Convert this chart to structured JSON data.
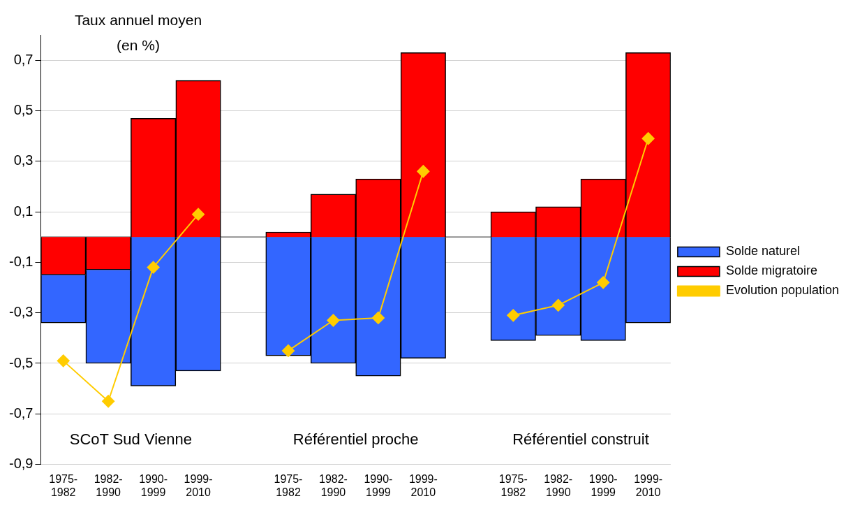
{
  "chart_data": {
    "type": "bar",
    "stacked": true,
    "ylabel": "Taux annuel moyen (en %)",
    "categories": [
      "1975-1982",
      "1982-1990",
      "1990-1999",
      "1999-2010",
      null,
      "1975-1982",
      "1982-1990",
      "1990-1999",
      "1999-2010",
      null,
      "1975-1982",
      "1982-1990",
      "1990-1999",
      "1999-2010"
    ],
    "series": [
      {
        "name": "Solde migratoire",
        "color": "#ff0000",
        "values": [
          -0.15,
          -0.13,
          0.47,
          0.62,
          null,
          0.02,
          0.17,
          0.23,
          0.73,
          null,
          0.1,
          0.12,
          0.23,
          0.73
        ]
      },
      {
        "name": "Solde naturel",
        "color": "#3366ff",
        "values": [
          -0.19,
          -0.37,
          -0.59,
          -0.53,
          null,
          -0.47,
          -0.5,
          -0.55,
          -0.48,
          null,
          -0.41,
          -0.39,
          -0.41,
          -0.34
        ]
      },
      {
        "name": "Evolution population",
        "type": "line",
        "color": "#ffcc00",
        "marker": "diamond",
        "values": [
          -0.49,
          -0.65,
          -0.12,
          0.09,
          null,
          -0.45,
          -0.33,
          -0.32,
          0.26,
          null,
          -0.31,
          -0.27,
          -0.18,
          0.39
        ]
      }
    ],
    "ylim": [
      -0.9,
      0.8
    ],
    "yticks": [
      {
        "value": -0.9,
        "label": "-0,9"
      },
      {
        "value": -0.7,
        "label": "-0,7"
      },
      {
        "value": -0.5,
        "label": "-0,5"
      },
      {
        "value": -0.3,
        "label": "-0,3"
      },
      {
        "value": -0.1,
        "label": "-0,1"
      },
      {
        "value": 0.1,
        "label": "0,1"
      },
      {
        "value": 0.3,
        "label": "0,3"
      },
      {
        "value": 0.5,
        "label": "0,5"
      },
      {
        "value": 0.7,
        "label": "0,7"
      }
    ],
    "grid": "y",
    "legend": "right",
    "ref_lines": [
      {
        "axis": "y",
        "value": 0,
        "color": "#555555"
      }
    ],
    "annotations": [
      "SCoT Sud Vienne",
      "Référentiel proche",
      "Référentiel construit"
    ]
  }
}
